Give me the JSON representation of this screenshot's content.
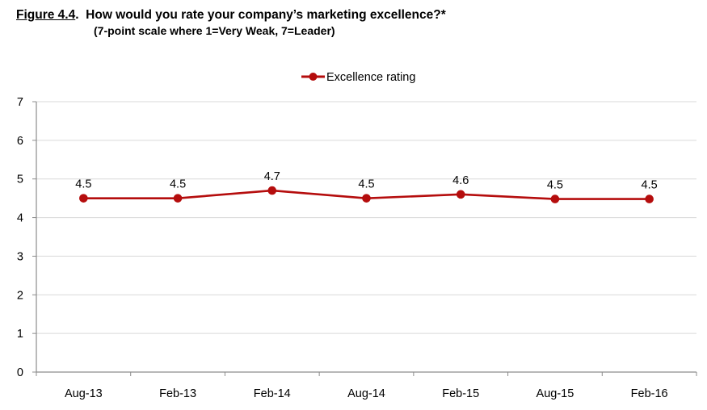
{
  "header": {
    "figure_label": "Figure 4.4",
    "figure_punct": ".",
    "question": "How would you rate your company’s marketing excellence?*",
    "subtitle": "(7-point scale where 1=Very Weak, 7=Leader)"
  },
  "chart_data": {
    "type": "line",
    "title": "How would you rate your company’s marketing excellence?*",
    "subtitle": "(7-point scale where 1=Very Weak, 7=Leader)",
    "categories": [
      "Aug-13",
      "Feb-13",
      "Feb-14",
      "Aug-14",
      "Feb-15",
      "Aug-15",
      "Feb-16"
    ],
    "series": [
      {
        "name": "Excellence rating",
        "values": [
          4.5,
          4.5,
          4.7,
          4.5,
          4.6,
          4.48,
          4.48
        ],
        "labels": [
          "4.5",
          "4.5",
          "4.7",
          "4.5",
          "4.6",
          "4.5",
          "4.5"
        ],
        "color": "#B50D0D"
      }
    ],
    "yticks": [
      "0",
      "1",
      "2",
      "3",
      "4",
      "5",
      "6",
      "7"
    ],
    "ylim": [
      0,
      7
    ],
    "xlabel": "",
    "ylabel": "",
    "grid": true,
    "legend": "top-center"
  }
}
